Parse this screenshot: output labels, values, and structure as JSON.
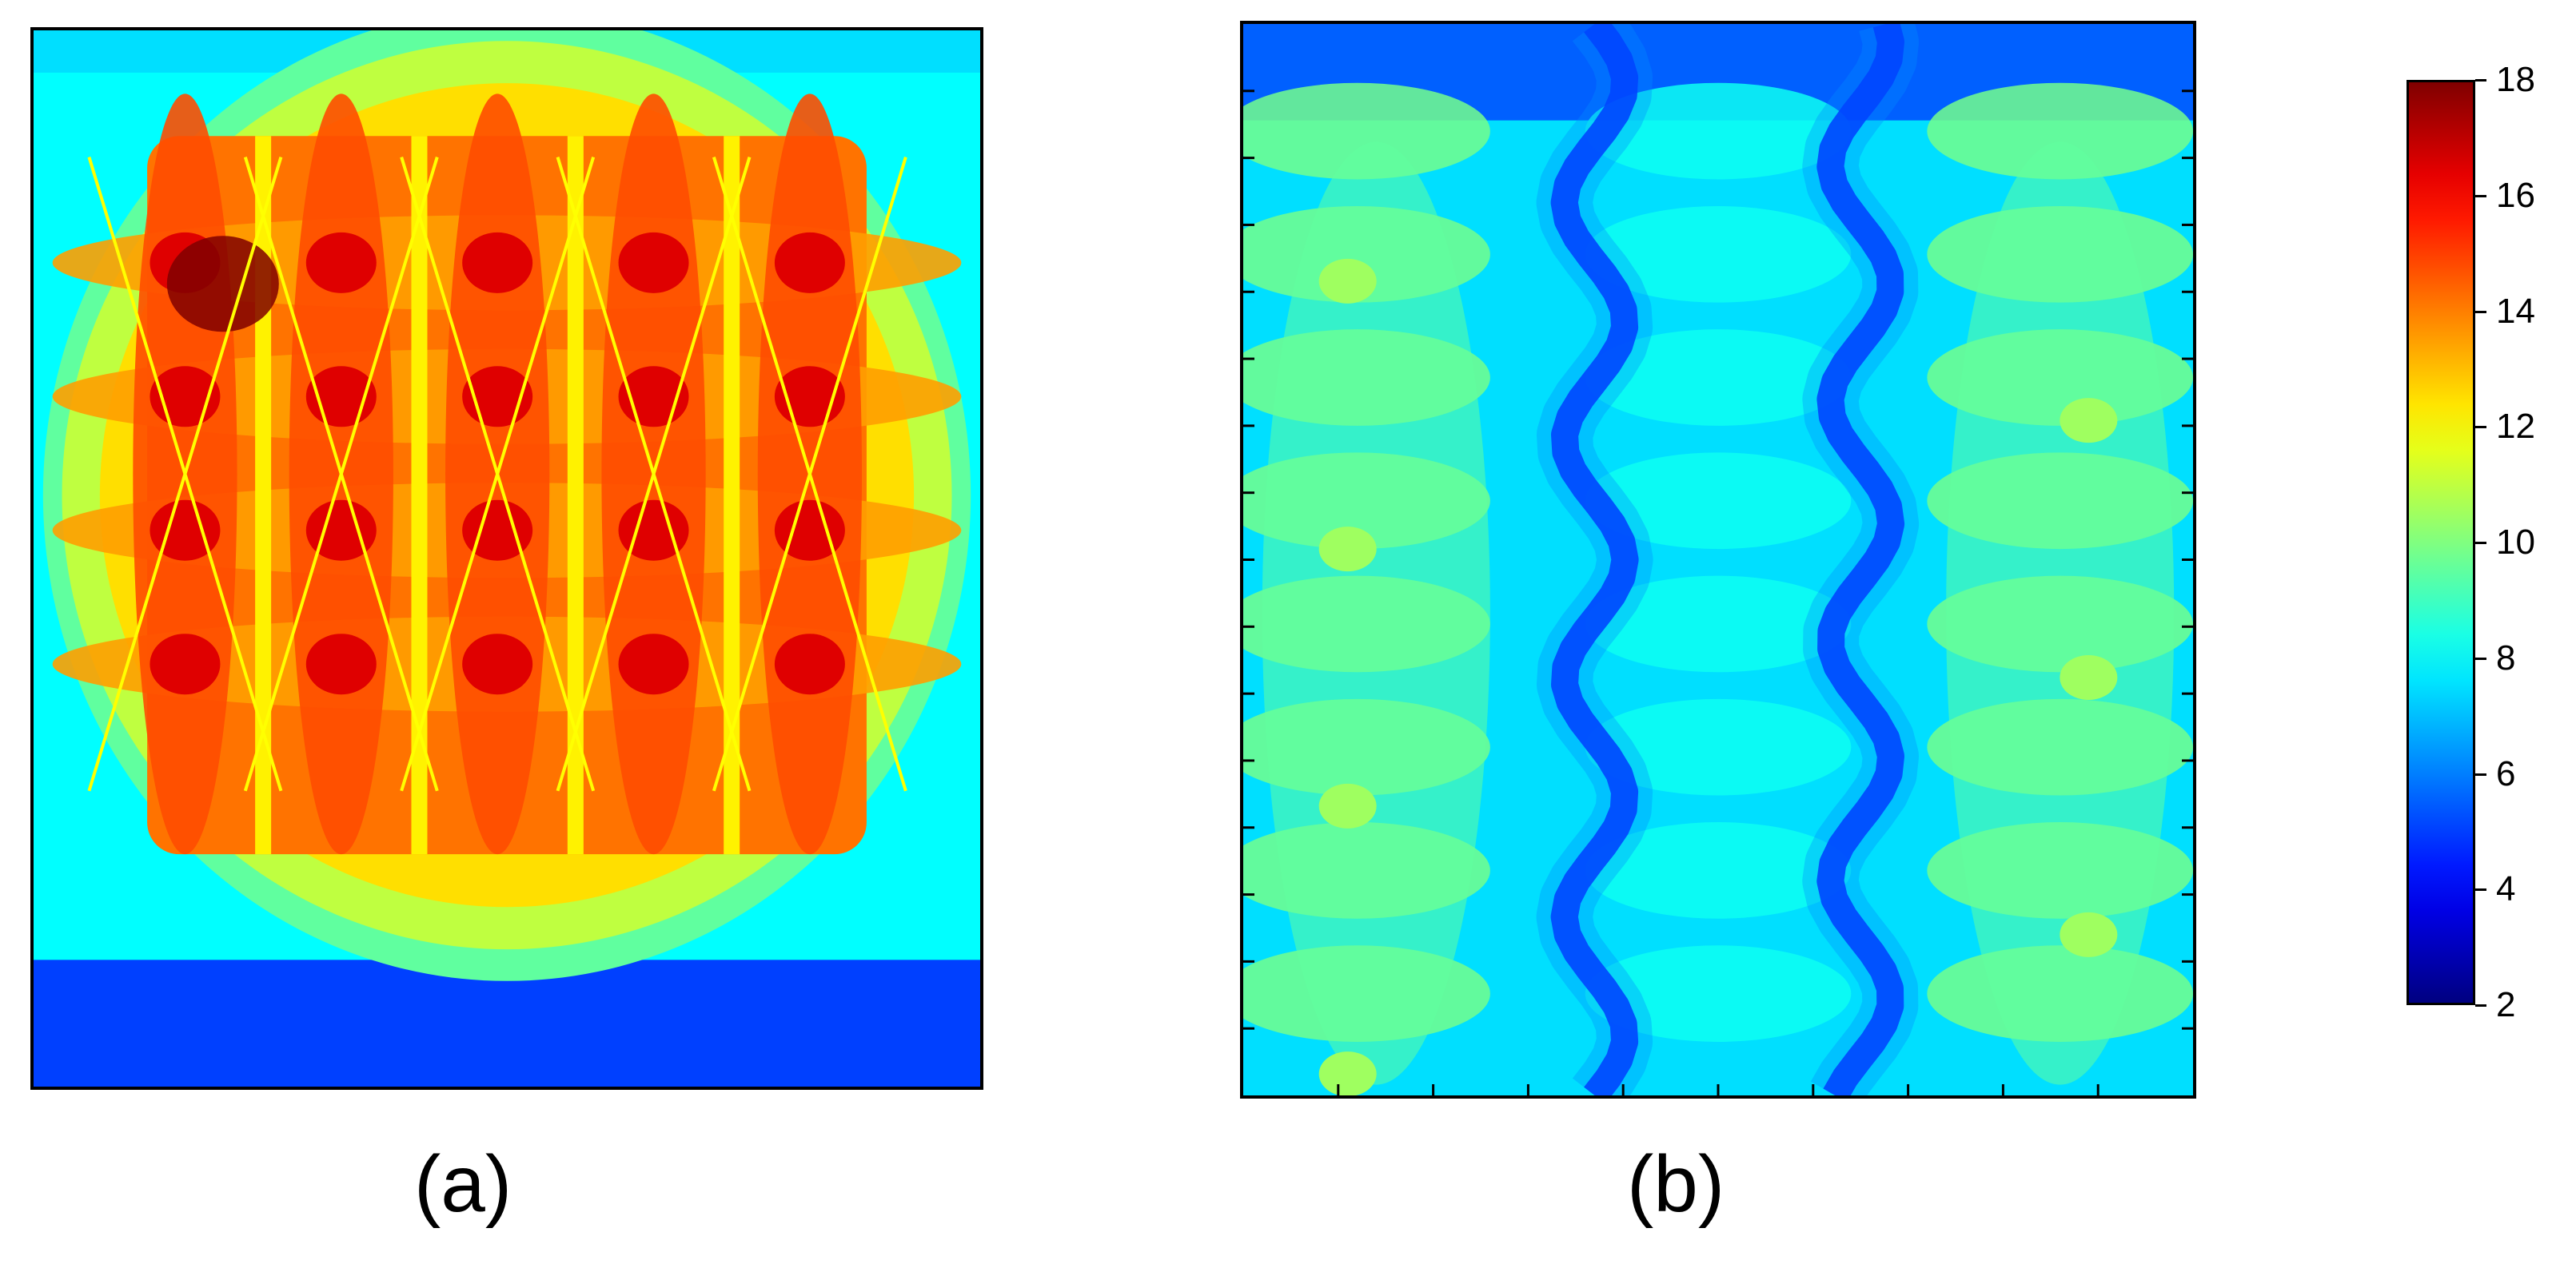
{
  "chart_data": [
    {
      "type": "heatmap",
      "panel_label": "(a)",
      "description_hidden": true,
      "value_range": [
        2,
        18
      ],
      "grid": {
        "rows": 4,
        "cols": 5
      },
      "hotspot_value": 16.5,
      "peak_value": 18,
      "edge_value_top": 8,
      "edge_value_bottom": 4,
      "colormap": "jet"
    },
    {
      "type": "heatmap",
      "panel_label": "(b)",
      "value_range": [
        2,
        18
      ],
      "background_value": 7.5,
      "high_value": 10.5,
      "low_value": 4.5,
      "colormap": "jet"
    }
  ],
  "colorbar": {
    "min": 2,
    "max": 18,
    "ticks": [
      "2",
      "4",
      "6",
      "8",
      "10",
      "12",
      "14",
      "16",
      "18"
    ],
    "colormap": "jet"
  },
  "labels": {
    "a": "(a)",
    "b": "(b)"
  }
}
